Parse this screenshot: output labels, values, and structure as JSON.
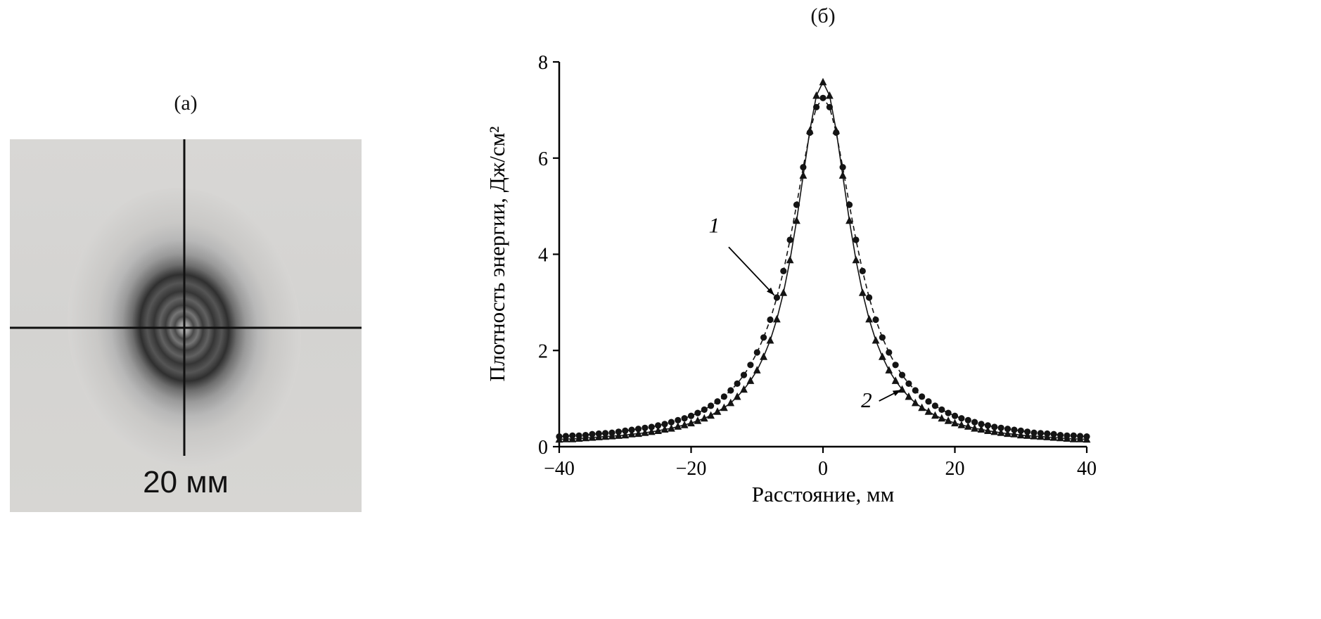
{
  "panel_a": {
    "label": "(а)",
    "scale_label": "20 мм"
  },
  "panel_b": {
    "label": "(б)"
  },
  "chart_data": {
    "type": "line",
    "title": "",
    "xlabel": "Расстояние, мм",
    "ylabel": "Плотность энергии, Дж/см²",
    "xlim": [
      -40,
      40
    ],
    "ylim": [
      0,
      8
    ],
    "xticks": [
      -40,
      -20,
      0,
      20,
      40
    ],
    "xtick_labels": [
      "−40",
      "−20",
      "0",
      "20",
      "40"
    ],
    "yticks": [
      0,
      2,
      4,
      6,
      8
    ],
    "ytick_labels": [
      "0",
      "2",
      "4",
      "6",
      "8"
    ],
    "grid": false,
    "legend": "none",
    "colors": {
      "axis": "#000000",
      "marker": "#141414"
    },
    "x": [
      -40,
      -39,
      -38,
      -37,
      -36,
      -35,
      -34,
      -33,
      -32,
      -31,
      -30,
      -29,
      -28,
      -27,
      -26,
      -25,
      -24,
      -23,
      -22,
      -21,
      -20,
      -19,
      -18,
      -17,
      -16,
      -15,
      -14,
      -13,
      -12,
      -11,
      -10,
      -9,
      -8,
      -7,
      -6,
      -5,
      -4,
      -3,
      -2,
      -1,
      0,
      1,
      2,
      3,
      4,
      5,
      6,
      7,
      8,
      9,
      10,
      11,
      12,
      13,
      14,
      15,
      16,
      17,
      18,
      19,
      20,
      21,
      22,
      23,
      24,
      25,
      26,
      27,
      28,
      29,
      30,
      31,
      32,
      33,
      34,
      35,
      36,
      37,
      38,
      39,
      40
    ],
    "series": [
      {
        "name": "1",
        "marker": "circle",
        "linestyle": "dashed",
        "values": [
          0.21,
          0.22,
          0.23,
          0.23,
          0.24,
          0.26,
          0.27,
          0.28,
          0.29,
          0.31,
          0.33,
          0.35,
          0.37,
          0.39,
          0.41,
          0.44,
          0.47,
          0.51,
          0.55,
          0.59,
          0.64,
          0.7,
          0.77,
          0.85,
          0.94,
          1.04,
          1.17,
          1.31,
          1.49,
          1.7,
          1.96,
          2.27,
          2.64,
          3.1,
          3.65,
          4.3,
          5.03,
          5.81,
          6.53,
          7.06,
          7.25,
          7.06,
          6.53,
          5.81,
          5.03,
          4.3,
          3.65,
          3.1,
          2.64,
          2.27,
          1.96,
          1.7,
          1.49,
          1.31,
          1.17,
          1.04,
          0.94,
          0.85,
          0.77,
          0.7,
          0.64,
          0.59,
          0.55,
          0.51,
          0.47,
          0.44,
          0.41,
          0.39,
          0.37,
          0.35,
          0.33,
          0.31,
          0.29,
          0.28,
          0.27,
          0.26,
          0.24,
          0.23,
          0.23,
          0.22,
          0.21
        ]
      },
      {
        "name": "2",
        "marker": "triangle",
        "linestyle": "solid",
        "values": [
          0.15,
          0.16,
          0.16,
          0.17,
          0.18,
          0.19,
          0.2,
          0.21,
          0.22,
          0.23,
          0.24,
          0.26,
          0.27,
          0.29,
          0.31,
          0.33,
          0.36,
          0.38,
          0.42,
          0.45,
          0.49,
          0.54,
          0.59,
          0.65,
          0.73,
          0.81,
          0.91,
          1.04,
          1.19,
          1.37,
          1.59,
          1.87,
          2.21,
          2.65,
          3.2,
          3.88,
          4.7,
          5.64,
          6.57,
          7.3,
          7.58,
          7.3,
          6.57,
          5.64,
          4.7,
          3.88,
          3.2,
          2.65,
          2.21,
          1.87,
          1.59,
          1.37,
          1.19,
          1.04,
          0.91,
          0.81,
          0.73,
          0.65,
          0.59,
          0.54,
          0.49,
          0.45,
          0.42,
          0.38,
          0.36,
          0.33,
          0.31,
          0.29,
          0.27,
          0.26,
          0.24,
          0.23,
          0.22,
          0.21,
          0.2,
          0.19,
          0.18,
          0.17,
          0.16,
          0.16,
          0.15
        ]
      }
    ],
    "annotations": [
      {
        "text": "1",
        "text_x": -16.5,
        "text_y": 4.45,
        "arrow_from_x": -14.3,
        "arrow_from_y": 4.15,
        "arrow_to_x": -7.4,
        "arrow_to_y": 3.15
      },
      {
        "text": "2",
        "text_x": 6.6,
        "text_y": 0.82,
        "arrow_from_x": 8.5,
        "arrow_from_y": 0.95,
        "arrow_to_x": 11.8,
        "arrow_to_y": 1.18
      }
    ]
  }
}
